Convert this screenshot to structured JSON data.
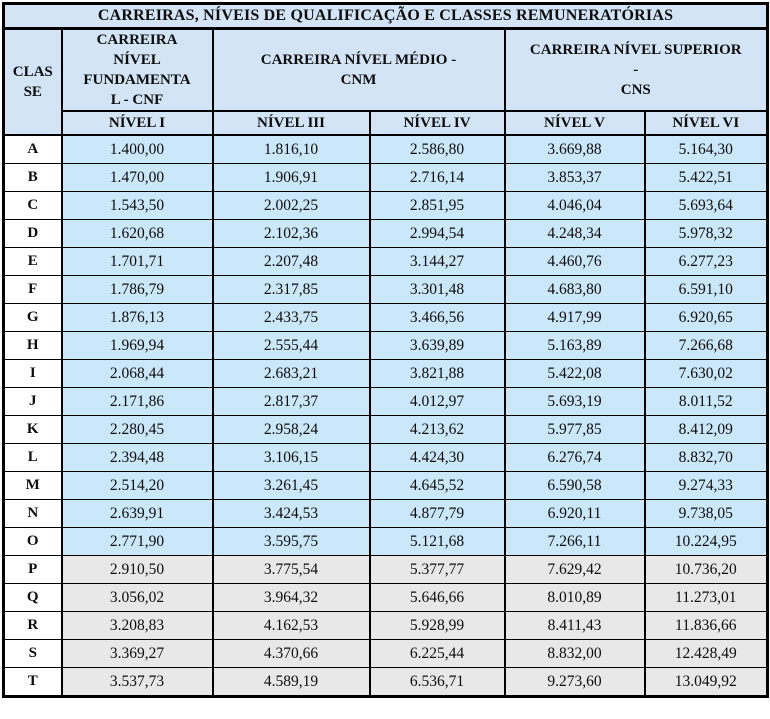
{
  "colors": {
    "header_bg": "#d2e4f5",
    "row_blue": "#cbe7fa",
    "row_gray": "#e8e8e8",
    "border": "#000000",
    "text": "#0d0d0d"
  },
  "title": "CARREIRAS, NÍVEIS DE QUALIFICAÇÃO E CLASSES REMUNERATÓRIAS",
  "columns": {
    "classe": {
      "label": "CLASSE",
      "lines": [
        "CLAS",
        "SE"
      ]
    },
    "cnf": {
      "label": "CARREIRA NÍVEL FUNDAMENTAL - CNF",
      "lines": [
        "CARREIRA",
        "NÍVEL",
        "FUNDAMENTA",
        "L - CNF"
      ]
    },
    "cnm": {
      "label": "CARREIRA NÍVEL MÉDIO - CNM",
      "lines": [
        "CARREIRA NÍVEL MÉDIO -",
        "CNM"
      ]
    },
    "cns": {
      "label": "CARREIRA NÍVEL SUPERIOR - CNS",
      "lines": [
        "CARREIRA NÍVEL SUPERIOR",
        "-",
        "CNS"
      ]
    }
  },
  "subheaders": [
    "NÍVEL I",
    "NÍVEL III",
    "NÍVEL IV",
    "NÍVEL V",
    "NÍVEL VI"
  ],
  "rows": [
    {
      "classe": "A",
      "shade": "blue",
      "values": [
        "1.400,00",
        "1.816,10",
        "2.586,80",
        "3.669,88",
        "5.164,30"
      ]
    },
    {
      "classe": "B",
      "shade": "blue",
      "values": [
        "1.470,00",
        "1.906,91",
        "2.716,14",
        "3.853,37",
        "5.422,51"
      ]
    },
    {
      "classe": "C",
      "shade": "blue",
      "values": [
        "1.543,50",
        "2.002,25",
        "2.851,95",
        "4.046,04",
        "5.693,64"
      ]
    },
    {
      "classe": "D",
      "shade": "blue",
      "values": [
        "1.620,68",
        "2.102,36",
        "2.994,54",
        "4.248,34",
        "5.978,32"
      ]
    },
    {
      "classe": "E",
      "shade": "blue",
      "values": [
        "1.701,71",
        "2.207,48",
        "3.144,27",
        "4.460,76",
        "6.277,23"
      ]
    },
    {
      "classe": "F",
      "shade": "blue",
      "values": [
        "1.786,79",
        "2.317,85",
        "3.301,48",
        "4.683,80",
        "6.591,10"
      ]
    },
    {
      "classe": "G",
      "shade": "blue",
      "values": [
        "1.876,13",
        "2.433,75",
        "3.466,56",
        "4.917,99",
        "6.920,65"
      ]
    },
    {
      "classe": "H",
      "shade": "blue",
      "values": [
        "1.969,94",
        "2.555,44",
        "3.639,89",
        "5.163,89",
        "7.266,68"
      ]
    },
    {
      "classe": "I",
      "shade": "blue",
      "values": [
        "2.068,44",
        "2.683,21",
        "3.821,88",
        "5.422,08",
        "7.630,02"
      ]
    },
    {
      "classe": "J",
      "shade": "blue",
      "values": [
        "2.171,86",
        "2.817,37",
        "4.012,97",
        "5.693,19",
        "8.011,52"
      ]
    },
    {
      "classe": "K",
      "shade": "blue",
      "values": [
        "2.280,45",
        "2.958,24",
        "4.213,62",
        "5.977,85",
        "8.412,09"
      ]
    },
    {
      "classe": "L",
      "shade": "blue",
      "values": [
        "2.394,48",
        "3.106,15",
        "4.424,30",
        "6.276,74",
        "8.832,70"
      ]
    },
    {
      "classe": "M",
      "shade": "blue",
      "values": [
        "2.514,20",
        "3.261,45",
        "4.645,52",
        "6.590,58",
        "9.274,33"
      ]
    },
    {
      "classe": "N",
      "shade": "blue",
      "values": [
        "2.639,91",
        "3.424,53",
        "4.877,79",
        "6.920,11",
        "9.738,05"
      ]
    },
    {
      "classe": "O",
      "shade": "blue",
      "values": [
        "2.771,90",
        "3.595,75",
        "5.121,68",
        "7.266,11",
        "10.224,95"
      ]
    },
    {
      "classe": "P",
      "shade": "gray",
      "values": [
        "2.910,50",
        "3.775,54",
        "5.377,77",
        "7.629,42",
        "10.736,20"
      ]
    },
    {
      "classe": "Q",
      "shade": "gray",
      "values": [
        "3.056,02",
        "3.964,32",
        "5.646,66",
        "8.010,89",
        "11.273,01"
      ]
    },
    {
      "classe": "R",
      "shade": "gray",
      "values": [
        "3.208,83",
        "4.162,53",
        "5.928,99",
        "8.411,43",
        "11.836,66"
      ]
    },
    {
      "classe": "S",
      "shade": "gray",
      "values": [
        "3.369,27",
        "4.370,66",
        "6.225,44",
        "8.832,00",
        "12.428,49"
      ]
    },
    {
      "classe": "T",
      "shade": "gray",
      "values": [
        "3.537,73",
        "4.589,19",
        "6.536,71",
        "9.273,60",
        "13.049,92"
      ]
    }
  ]
}
